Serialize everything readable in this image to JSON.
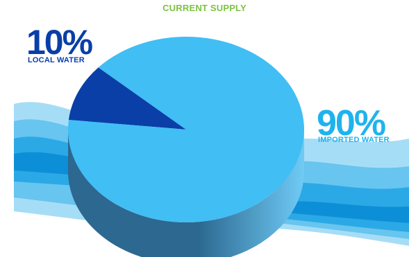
{
  "colors": {
    "title": "#7DC242",
    "local": "#0A3FA8",
    "imported": "#1FB3EE",
    "pie_top_main": "#41BEF4",
    "pie_top_small": "#0A3FA8",
    "pie_side_dark": "#2C6890",
    "pie_side_light": "#6FCBF6",
    "wave_1": "#0D8FD8",
    "wave_2": "#2BA9E6",
    "wave_3": "#67C5EF",
    "wave_4": "#A6DDF6"
  },
  "chart_data": {
    "type": "pie",
    "title": "CURRENT SUPPLY",
    "slices": [
      {
        "label": "LOCAL WATER",
        "value": 10,
        "display": "10%"
      },
      {
        "label": "IMPORTED WATER",
        "value": 90,
        "display": "90%"
      }
    ]
  }
}
